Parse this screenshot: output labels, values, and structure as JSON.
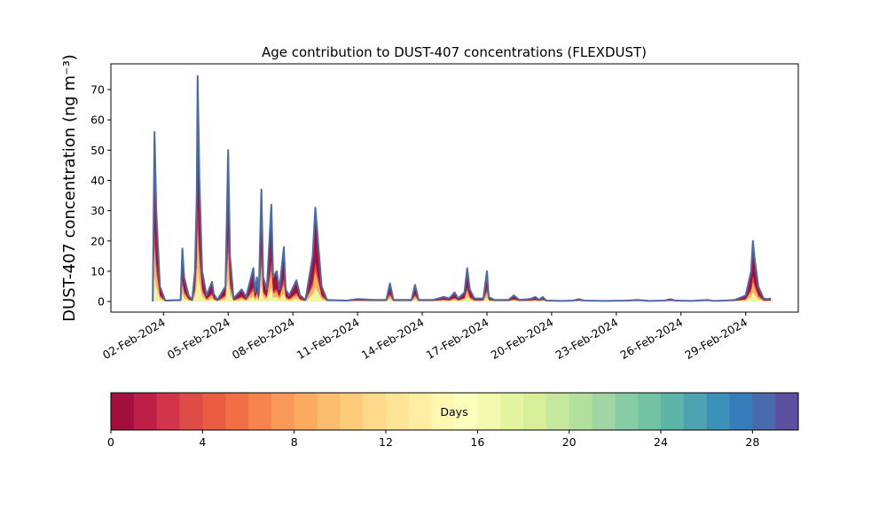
{
  "chart_data": {
    "type": "area",
    "title": "Age contribution to DUST-407 concentrations (FLEXDUST)",
    "ylabel": "DUST-407 concentration (ng m⁻³)",
    "xlabel": "",
    "x_start": "2024-02-01",
    "x_end": "2024-03-01",
    "ylim": [
      -3.5,
      78.5
    ],
    "yticks": [
      0,
      10,
      20,
      30,
      40,
      50,
      60,
      70
    ],
    "xticks": [
      "02-Feb-2024",
      "05-Feb-2024",
      "08-Feb-2024",
      "11-Feb-2024",
      "14-Feb-2024",
      "17-Feb-2024",
      "20-Feb-2024",
      "23-Feb-2024",
      "26-Feb-2024",
      "29-Feb-2024"
    ],
    "grid": false,
    "total_color": "#4a6aa8",
    "series_groups": [
      {
        "name": "0-2 days",
        "color": "#a50f3f"
      },
      {
        "name": "2-6 days",
        "color": "#e0503a"
      },
      {
        "name": "6-12 days",
        "color": "#fdb464"
      },
      {
        "name": "12-20 days",
        "color": "#eef4a6"
      },
      {
        "name": "20-30 days",
        "color": "#4a6aa8"
      }
    ],
    "total": [
      [
        "2024-02-01T12:00",
        0
      ],
      [
        "2024-02-01T14:00",
        56.0
      ],
      [
        "2024-02-01T16:00",
        30
      ],
      [
        "2024-02-01T20:00",
        5
      ],
      [
        "2024-02-02T02:00",
        0.3
      ],
      [
        "2024-02-02T19:00",
        0.5
      ],
      [
        "2024-02-02T21:00",
        17.5
      ],
      [
        "2024-02-02T23:00",
        8
      ],
      [
        "2024-02-03T04:00",
        2
      ],
      [
        "2024-02-03T08:00",
        0.5
      ],
      [
        "2024-02-03T11:00",
        10
      ],
      [
        "2024-02-03T13:00",
        35
      ],
      [
        "2024-02-03T14:00",
        74.5
      ],
      [
        "2024-02-03T16:00",
        40
      ],
      [
        "2024-02-03T19:00",
        10
      ],
      [
        "2024-02-04T00:00",
        2
      ],
      [
        "2024-02-04T06:00",
        6.5
      ],
      [
        "2024-02-04T08:00",
        2.5
      ],
      [
        "2024-02-04T12:00",
        0.5
      ],
      [
        "2024-02-04T21:00",
        5
      ],
      [
        "2024-02-05T00:00",
        50.0
      ],
      [
        "2024-02-05T02:00",
        15
      ],
      [
        "2024-02-05T06:00",
        1
      ],
      [
        "2024-02-05T15:00",
        4
      ],
      [
        "2024-02-05T20:00",
        1.5
      ],
      [
        "2024-02-06T04:00",
        11
      ],
      [
        "2024-02-06T06:00",
        3
      ],
      [
        "2024-02-06T08:00",
        8
      ],
      [
        "2024-02-06T10:00",
        2
      ],
      [
        "2024-02-06T13:00",
        37
      ],
      [
        "2024-02-06T15:00",
        8
      ],
      [
        "2024-02-06T19:00",
        4
      ],
      [
        "2024-02-07T00:00",
        32
      ],
      [
        "2024-02-07T02:00",
        8
      ],
      [
        "2024-02-07T06:00",
        10
      ],
      [
        "2024-02-07T09:00",
        4
      ],
      [
        "2024-02-07T14:00",
        18
      ],
      [
        "2024-02-07T16:00",
        4
      ],
      [
        "2024-02-07T20:00",
        2
      ],
      [
        "2024-02-08T04:00",
        7
      ],
      [
        "2024-02-08T08:00",
        2
      ],
      [
        "2024-02-08T14:00",
        0.5
      ],
      [
        "2024-02-08T22:00",
        15
      ],
      [
        "2024-02-09T01:00",
        31
      ],
      [
        "2024-02-09T04:00",
        20
      ],
      [
        "2024-02-09T08:00",
        5
      ],
      [
        "2024-02-09T14:00",
        0.5
      ],
      [
        "2024-02-10T12:00",
        0.3
      ],
      [
        "2024-02-11T00:00",
        0.8
      ],
      [
        "2024-02-11T18:00",
        0.5
      ],
      [
        "2024-02-12T08:00",
        0.5
      ],
      [
        "2024-02-12T12:00",
        6
      ],
      [
        "2024-02-12T16:00",
        0.5
      ],
      [
        "2024-02-13T12:00",
        0.5
      ],
      [
        "2024-02-13T16:00",
        5.5
      ],
      [
        "2024-02-13T20:00",
        0.5
      ],
      [
        "2024-02-14T12:00",
        0.5
      ],
      [
        "2024-02-15T00:00",
        1.5
      ],
      [
        "2024-02-15T06:00",
        1
      ],
      [
        "2024-02-15T12:00",
        3
      ],
      [
        "2024-02-15T16:00",
        1
      ],
      [
        "2024-02-15T23:00",
        3
      ],
      [
        "2024-02-16T02:00",
        11
      ],
      [
        "2024-02-16T05:00",
        4
      ],
      [
        "2024-02-16T10:00",
        1
      ],
      [
        "2024-02-16T20:00",
        1
      ],
      [
        "2024-02-17T00:00",
        10
      ],
      [
        "2024-02-17T02:00",
        1.5
      ],
      [
        "2024-02-17T08:00",
        0.5
      ],
      [
        "2024-02-18T00:00",
        0.5
      ],
      [
        "2024-02-18T06:00",
        2
      ],
      [
        "2024-02-18T12:00",
        0.5
      ],
      [
        "2024-02-19T00:00",
        0.8
      ],
      [
        "2024-02-19T06:00",
        1.5
      ],
      [
        "2024-02-19T10:00",
        0.5
      ],
      [
        "2024-02-19T14:00",
        1.5
      ],
      [
        "2024-02-19T18:00",
        0.3
      ],
      [
        "2024-02-20T12:00",
        0.2
      ],
      [
        "2024-02-21T00:00",
        0.3
      ],
      [
        "2024-02-21T06:00",
        0.8
      ],
      [
        "2024-02-21T12:00",
        0.3
      ],
      [
        "2024-02-22T12:00",
        0.2
      ],
      [
        "2024-02-23T12:00",
        0.3
      ],
      [
        "2024-02-24T00:00",
        0.5
      ],
      [
        "2024-02-24T12:00",
        0.2
      ],
      [
        "2024-02-25T06:00",
        0.3
      ],
      [
        "2024-02-25T12:00",
        0.8
      ],
      [
        "2024-02-25T18:00",
        0.3
      ],
      [
        "2024-02-26T12:00",
        0.2
      ],
      [
        "2024-02-27T06:00",
        0.5
      ],
      [
        "2024-02-27T12:00",
        0.2
      ],
      [
        "2024-02-28T00:00",
        0.3
      ],
      [
        "2024-02-28T12:00",
        0.5
      ],
      [
        "2024-02-29T00:00",
        2
      ],
      [
        "2024-02-29T06:00",
        10
      ],
      [
        "2024-02-29T08:00",
        20
      ],
      [
        "2024-02-29T10:00",
        14
      ],
      [
        "2024-02-29T14:00",
        5
      ],
      [
        "2024-02-29T20:00",
        1
      ],
      [
        "2024-03-01T00:00",
        0.8
      ],
      [
        "2024-03-01T04:00",
        1
      ]
    ]
  }
}
